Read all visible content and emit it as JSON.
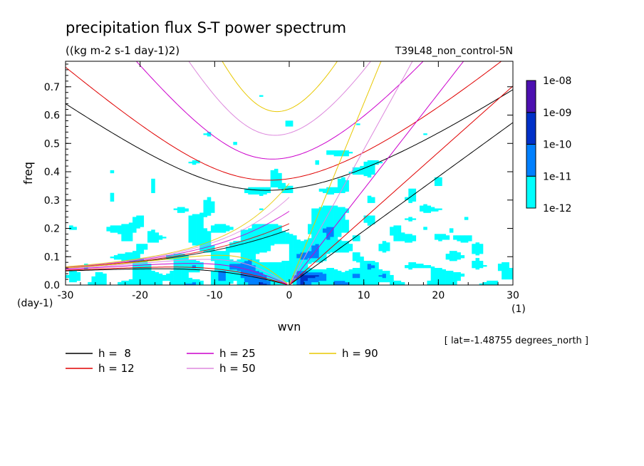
{
  "chart_data": {
    "type": "heatmap",
    "title": "precipitation flux S-T power spectrum",
    "units": "((kg m-2 s-1 day-1)2)",
    "run_label": "T39L48_non_control-5N",
    "xlabel": "wvn",
    "ylabel": "freq",
    "x_unit": "(1)",
    "y_unit": "(day-1)",
    "xlim": [
      -30,
      30
    ],
    "ylim": [
      0,
      0.79
    ],
    "x_ticks": [
      -30,
      -20,
      -10,
      0,
      10,
      20,
      30
    ],
    "x_tick_labels": [
      "-30",
      "-20",
      "-10",
      "0",
      "10",
      "20",
      "30"
    ],
    "y_ticks": [
      0,
      0.1,
      0.2,
      0.3,
      0.4,
      0.5,
      0.6,
      0.7
    ],
    "y_tick_labels": [
      "0.0",
      "0.1",
      "0.2",
      "0.3",
      "0.4",
      "0.5",
      "0.6",
      "0.7"
    ],
    "colorbar": {
      "levels": [
        "1e-12",
        "1e-11",
        "1e-10",
        "1e-09",
        "1e-08"
      ],
      "colors": [
        "#00ffff",
        "#0080ff",
        "#0030c8",
        "#4c10b0"
      ]
    },
    "annotation": "[ lat=-1.48755 degrees_north ]",
    "dispersion_curves": [
      {
        "label": "h =  8",
        "h": 8,
        "color": "#000000"
      },
      {
        "label": "h = 12",
        "h": 12,
        "color": "#e00000"
      },
      {
        "label": "h = 25",
        "h": 25,
        "color": "#cc00cc"
      },
      {
        "label": "h = 50",
        "h": 50,
        "color": "#dd88dd"
      },
      {
        "label": "h = 90",
        "h": 90,
        "color": "#e8c800"
      }
    ]
  }
}
